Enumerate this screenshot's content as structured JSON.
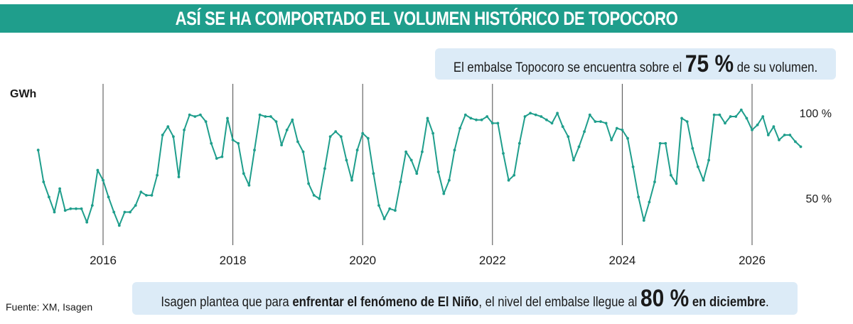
{
  "title": "ASÍ SE HA COMPORTADO EL VOLUMEN HISTÓRICO DE TOPOCORO",
  "note_top": {
    "before": "El embalse Topocoro se encuentra sobre el ",
    "value": "75 %",
    "after": " de su volumen."
  },
  "note_bottom": {
    "before": "Isagen plantea que para ",
    "bold1": "enfrentar el fenómeno de El Niño",
    "middle": ", el nivel del embalse llegue al ",
    "value": "80 %",
    "bold2": " en diciembre",
    "after": "."
  },
  "source": "Fuente: XM, Isagen",
  "colors": {
    "title_bg": "#1f9e8c",
    "line": "#1f9e8c",
    "note_bg": "#dcebf7"
  },
  "chart_data": {
    "type": "line",
    "ylabel": "GWh",
    "y_reference_labels": [
      {
        "label": "100 %",
        "value": 100
      },
      {
        "label": "50 %",
        "value": 50
      }
    ],
    "ylim": [
      30,
      110
    ],
    "xlim": [
      2014.9,
      2026.7
    ],
    "x_ticks": [
      2016,
      2018,
      2020,
      2022,
      2024,
      2026
    ],
    "x_tick_labels": [
      "2016",
      "2018",
      "2020",
      "2022",
      "2024",
      "2026"
    ],
    "grid": "vertical lines at x ticks",
    "series": [
      {
        "x_start": 2015.0,
        "x_step_months": 1,
        "values": [
          80,
          61,
          52,
          43,
          57,
          44,
          45,
          45,
          45,
          37,
          47,
          68,
          62,
          52,
          43,
          35,
          43,
          43,
          47,
          55,
          53,
          53,
          65,
          89,
          94,
          88,
          64,
          92,
          101,
          100,
          101,
          97,
          84,
          75,
          76,
          99,
          86,
          84,
          66,
          59,
          80,
          101,
          100,
          100,
          97,
          83,
          92,
          98,
          85,
          79,
          60,
          53,
          51,
          69,
          88,
          91,
          88,
          74,
          62,
          80,
          90,
          87,
          66,
          47,
          39,
          45,
          44,
          61,
          79,
          74,
          66,
          79,
          99,
          90,
          67,
          54,
          62,
          80,
          93,
          101,
          99,
          98,
          98,
          100,
          96,
          96,
          78,
          62,
          65,
          84,
          100,
          102,
          101,
          100,
          98,
          96,
          102,
          94,
          88,
          74,
          82,
          91,
          101,
          97,
          97,
          96,
          86,
          93,
          92,
          87,
          70,
          52,
          38,
          49,
          61,
          84,
          84,
          65,
          60,
          99,
          97,
          81,
          70,
          62,
          74,
          101,
          101,
          96,
          100,
          100,
          104,
          99,
          92,
          95,
          100,
          89,
          94,
          86,
          89,
          89,
          85,
          82
        ]
      }
    ]
  }
}
